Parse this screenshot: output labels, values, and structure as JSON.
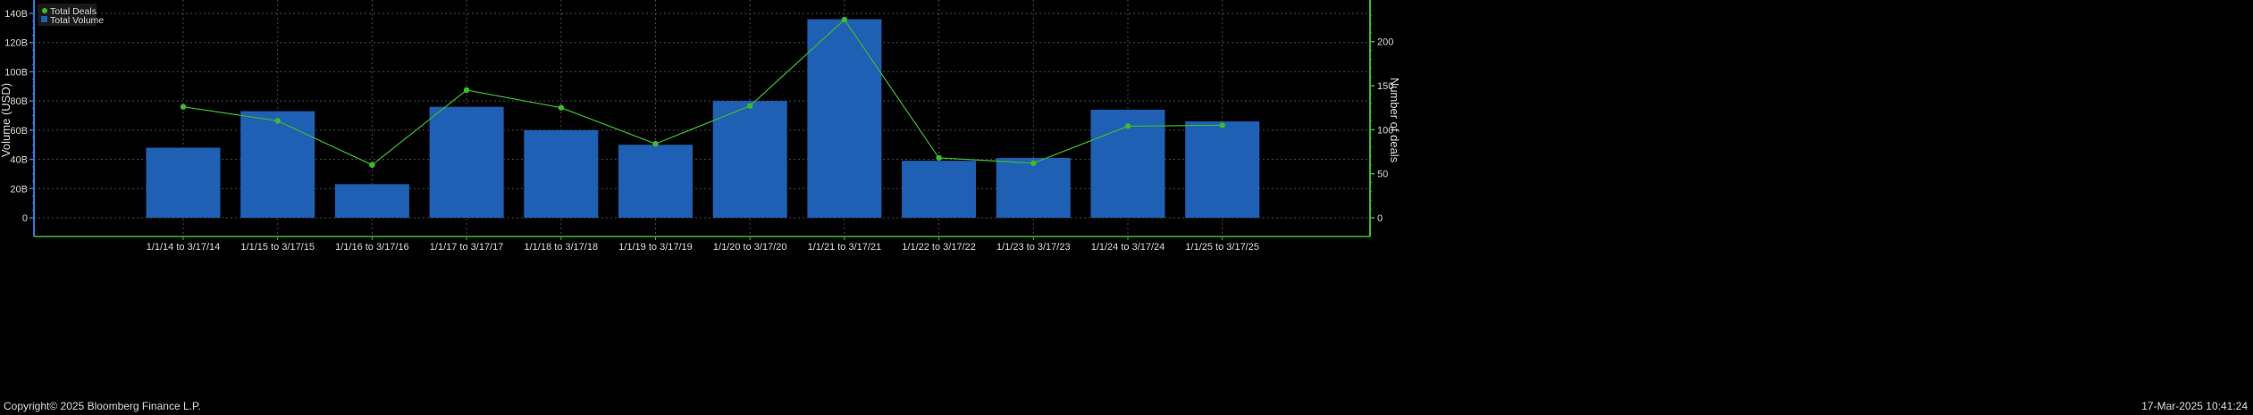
{
  "chart_data": {
    "type": "bar",
    "categories": [
      "1/1/14 to 3/17/14",
      "1/1/15 to 3/17/15",
      "1/1/16 to 3/17/16",
      "1/1/17 to 3/17/17",
      "1/1/18 to 3/17/18",
      "1/1/19 to 3/17/19",
      "1/1/20 to 3/17/20",
      "1/1/21 to 3/17/21",
      "1/1/22 to 3/17/22",
      "1/1/23 to 3/17/23",
      "1/1/24 to 3/17/24",
      "1/1/25 to 3/17/25"
    ],
    "series": [
      {
        "name": "Total Volume",
        "type": "bar",
        "axis": "left",
        "color": "#1f5fb4",
        "values": [
          48,
          73,
          23,
          76,
          60,
          50,
          80,
          136,
          39,
          41,
          74,
          66
        ]
      },
      {
        "name": "Total Deals",
        "type": "line",
        "axis": "right",
        "color": "#3dbb2f",
        "values": [
          126,
          110,
          60,
          145,
          125,
          84,
          127,
          225,
          68,
          62,
          104,
          105
        ]
      }
    ],
    "ylabel": "Volume (USD)",
    "ylabel_right": "Number of deals",
    "ylim": [
      0,
      140
    ],
    "y_ticks": [
      "0",
      "20B",
      "40B",
      "60B",
      "80B",
      "100B",
      "120B",
      "140B"
    ],
    "y_tick_values": [
      0,
      20,
      40,
      60,
      80,
      100,
      120,
      140
    ],
    "ylim_right": [
      0,
      228
    ],
    "y2_ticks": [
      "0",
      "50",
      "100",
      "150",
      "200"
    ],
    "y2_tick_values": [
      0,
      50,
      100,
      150,
      200
    ],
    "grid": true,
    "legend": "top-left",
    "colors": {
      "background": "#000000",
      "text": "#d8d8d8",
      "grid": "#4a4a4a",
      "left_axis": "#2a7fd4",
      "right_axis": "#3dbb2f",
      "bottom_axis": "#3dbb2f",
      "legend_bg": "#1a1a1a"
    }
  },
  "footer": {
    "copyright": "Copyright© 2025 Bloomberg Finance L.P.",
    "timestamp": "17-Mar-2025 10:41:24"
  }
}
